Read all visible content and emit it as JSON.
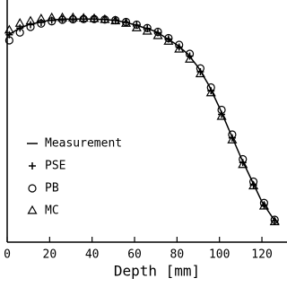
{
  "chart_data": {
    "type": "line",
    "x_label": "Depth [mm]",
    "xlim": [
      0,
      130
    ],
    "xticks": [
      0,
      20,
      40,
      60,
      80,
      100,
      120
    ],
    "ylim": [
      0,
      100
    ],
    "series": [
      {
        "name": "Measurement",
        "marker": "line",
        "color": "#000000",
        "x": [
          0,
          5,
          10,
          15,
          20,
          25,
          30,
          35,
          40,
          45,
          50,
          55,
          60,
          65,
          70,
          75,
          80,
          85,
          90,
          95,
          100,
          105,
          110,
          115,
          120,
          125,
          128
        ],
        "values": [
          92,
          95,
          97,
          98,
          99,
          99.4,
          99.5,
          99.5,
          99.5,
          99.3,
          99,
          98.2,
          97,
          95.5,
          94,
          91,
          88,
          84,
          78,
          70,
          60,
          49,
          38,
          28,
          18,
          11,
          8
        ]
      },
      {
        "name": "PSE",
        "marker": "plus",
        "color": "#000000",
        "x": [
          1,
          6,
          11,
          16,
          21,
          26,
          31,
          36,
          41,
          46,
          51,
          56,
          61,
          66,
          71,
          76,
          81,
          86,
          91,
          96,
          101,
          106,
          111,
          116,
          121,
          126
        ],
        "values": [
          92.5,
          95.5,
          97,
          98,
          99,
          99.5,
          99.5,
          99.5,
          99.5,
          99.3,
          99,
          98,
          96.8,
          95.3,
          93.4,
          90.6,
          87,
          83,
          76,
          67.5,
          57,
          46.5,
          35.5,
          25.5,
          16.5,
          9.5
        ]
      },
      {
        "name": "PB",
        "marker": "circle",
        "color": "#000000",
        "x": [
          1,
          6,
          11,
          16,
          21,
          26,
          31,
          36,
          41,
          46,
          51,
          56,
          61,
          66,
          71,
          76,
          81,
          86,
          91,
          96,
          101,
          106,
          111,
          116,
          121,
          126
        ],
        "values": [
          90,
          93.5,
          96,
          97.5,
          98.5,
          99.2,
          99.4,
          99.5,
          99.5,
          99.3,
          99,
          98.2,
          97,
          95.5,
          93.8,
          91,
          88,
          84,
          77.5,
          69,
          59,
          48,
          37,
          27,
          17.5,
          10
        ]
      },
      {
        "name": "MC",
        "marker": "triangle",
        "color": "#000000",
        "x": [
          1,
          6,
          11,
          16,
          21,
          26,
          31,
          36,
          41,
          46,
          51,
          56,
          61,
          66,
          71,
          76,
          81,
          86,
          91,
          96,
          101,
          106,
          111,
          116,
          121,
          126
        ],
        "values": [
          94.5,
          97.5,
          98.5,
          99.5,
          100,
          100,
          100,
          99.8,
          99.6,
          99.2,
          98.6,
          97.5,
          95.5,
          94,
          92,
          89.5,
          86,
          81.5,
          75,
          66.5,
          56,
          45.5,
          34.5,
          25,
          16,
          9
        ]
      }
    ]
  }
}
